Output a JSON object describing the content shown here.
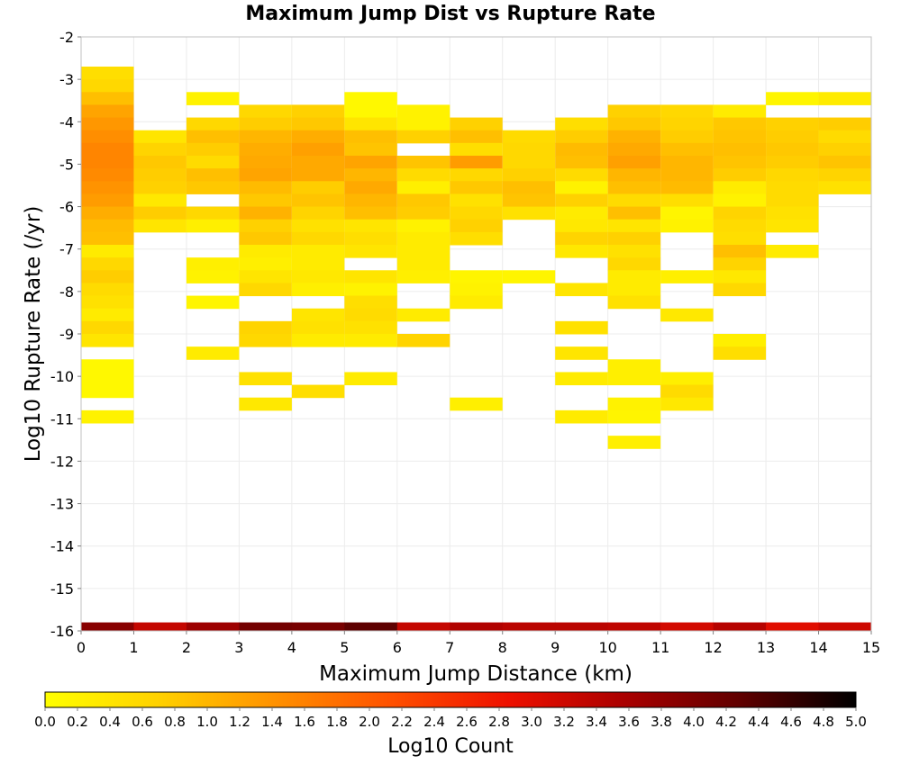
{
  "chart_data": {
    "type": "heatmap",
    "title": "Maximum Jump Dist vs Rupture Rate",
    "xlabel": "Maximum Jump Distance (km)",
    "ylabel": "Log10 Rupture Rate (/yr)",
    "xlim": [
      0,
      15
    ],
    "ylim": [
      -16,
      -2
    ],
    "x_ticks": [
      "0",
      "1",
      "2",
      "3",
      "4",
      "5",
      "6",
      "7",
      "8",
      "9",
      "10",
      "11",
      "12",
      "13",
      "14",
      "15"
    ],
    "y_ticks": [
      "-2",
      "-3",
      "-4",
      "-5",
      "-6",
      "-7",
      "-8",
      "-9",
      "-10",
      "-11",
      "-12",
      "-13",
      "-14",
      "-15",
      "-16"
    ],
    "x_bin_width": 1,
    "y_bin_height": 0.3,
    "grid": true,
    "colorbar": {
      "label": "Log10 Count",
      "range": [
        0,
        5
      ],
      "ticks": [
        "0.0",
        "0.2",
        "0.4",
        "0.6",
        "0.8",
        "1.0",
        "1.2",
        "1.4",
        "1.6",
        "1.8",
        "2.0",
        "2.2",
        "2.4",
        "2.6",
        "2.8",
        "3.0",
        "3.2",
        "3.4",
        "3.6",
        "3.8",
        "4.0",
        "4.2",
        "4.4",
        "4.6",
        "4.8",
        "5.0"
      ],
      "colors": [
        "#ffff00",
        "#ffd000",
        "#ff9000",
        "#ff5000",
        "#ee1000",
        "#aa0000",
        "#600000",
        "#000000"
      ]
    },
    "columns": [
      {
        "x": 0.5,
        "ranges": [
          [
            -2.85,
            0.5
          ],
          [
            -3.15,
            0.6
          ],
          [
            -3.45,
            0.9
          ],
          [
            -3.75,
            1.2
          ],
          [
            -4.05,
            1.35
          ],
          [
            -4.35,
            1.45
          ],
          [
            -4.65,
            1.55
          ],
          [
            -4.95,
            1.55
          ],
          [
            -5.25,
            1.5
          ],
          [
            -5.55,
            1.4
          ],
          [
            -5.85,
            1.3
          ],
          [
            -6.15,
            1.1
          ],
          [
            -6.45,
            0.95
          ],
          [
            -6.75,
            0.9
          ],
          [
            -7.05,
            0.3
          ],
          [
            -7.35,
            0.6
          ],
          [
            -7.65,
            0.75
          ],
          [
            -7.95,
            0.55
          ],
          [
            -8.25,
            0.45
          ],
          [
            -8.55,
            0.3
          ],
          [
            -8.85,
            0.6
          ],
          [
            -9.15,
            0.4
          ],
          [
            -9.75,
            0.1
          ],
          [
            -10.05,
            0.1
          ],
          [
            -10.35,
            0.1
          ],
          [
            -10.95,
            0.2
          ]
        ]
      },
      {
        "x": 1.5,
        "ranges": [
          [
            -4.35,
            0.4
          ],
          [
            -4.65,
            0.65
          ],
          [
            -4.95,
            0.8
          ],
          [
            -5.25,
            0.75
          ],
          [
            -5.55,
            0.7
          ],
          [
            -5.85,
            0.35
          ],
          [
            -6.15,
            0.75
          ],
          [
            -6.45,
            0.4
          ]
        ]
      },
      {
        "x": 2.5,
        "ranges": [
          [
            -3.45,
            0.2
          ],
          [
            -4.05,
            0.6
          ],
          [
            -4.35,
            0.9
          ],
          [
            -4.65,
            0.75
          ],
          [
            -4.95,
            0.55
          ],
          [
            -5.25,
            0.9
          ],
          [
            -5.55,
            0.8
          ],
          [
            -6.15,
            0.6
          ],
          [
            -6.45,
            0.25
          ],
          [
            -7.35,
            0.25
          ],
          [
            -7.65,
            0.2
          ],
          [
            -8.25,
            0.15
          ],
          [
            -9.45,
            0.3
          ]
        ]
      },
      {
        "x": 3.5,
        "ranges": [
          [
            -3.75,
            0.6
          ],
          [
            -4.05,
            0.75
          ],
          [
            -4.35,
            1.0
          ],
          [
            -4.65,
            1.1
          ],
          [
            -4.95,
            1.15
          ],
          [
            -5.25,
            1.2
          ],
          [
            -5.55,
            0.95
          ],
          [
            -5.85,
            0.8
          ],
          [
            -6.15,
            1.05
          ],
          [
            -6.45,
            0.7
          ],
          [
            -6.75,
            0.8
          ],
          [
            -7.05,
            0.3
          ],
          [
            -7.35,
            0.25
          ],
          [
            -7.65,
            0.4
          ],
          [
            -7.95,
            0.6
          ],
          [
            -8.85,
            0.65
          ],
          [
            -9.15,
            0.6
          ],
          [
            -10.05,
            0.45
          ],
          [
            -10.65,
            0.35
          ]
        ]
      },
      {
        "x": 4.5,
        "ranges": [
          [
            -3.75,
            0.7
          ],
          [
            -4.05,
            0.8
          ],
          [
            -4.35,
            1.1
          ],
          [
            -4.65,
            1.25
          ],
          [
            -4.95,
            1.15
          ],
          [
            -5.25,
            1.15
          ],
          [
            -5.55,
            0.75
          ],
          [
            -5.85,
            0.85
          ],
          [
            -6.15,
            0.65
          ],
          [
            -6.45,
            0.45
          ],
          [
            -6.75,
            0.6
          ],
          [
            -7.05,
            0.3
          ],
          [
            -7.35,
            0.3
          ],
          [
            -7.65,
            0.35
          ],
          [
            -7.95,
            0.25
          ],
          [
            -8.55,
            0.4
          ],
          [
            -8.85,
            0.45
          ],
          [
            -9.15,
            0.3
          ],
          [
            -10.35,
            0.5
          ]
        ]
      },
      {
        "x": 5.5,
        "ranges": [
          [
            -3.45,
            0.1
          ],
          [
            -3.75,
            0.1
          ],
          [
            -4.05,
            0.4
          ],
          [
            -4.35,
            0.9
          ],
          [
            -4.65,
            0.85
          ],
          [
            -4.95,
            1.2
          ],
          [
            -5.25,
            1.0
          ],
          [
            -5.55,
            1.15
          ],
          [
            -5.85,
            1.0
          ],
          [
            -6.15,
            0.9
          ],
          [
            -6.45,
            0.4
          ],
          [
            -6.75,
            0.5
          ],
          [
            -7.05,
            0.4
          ],
          [
            -7.65,
            0.4
          ],
          [
            -7.95,
            0.2
          ],
          [
            -8.25,
            0.5
          ],
          [
            -8.55,
            0.55
          ],
          [
            -8.85,
            0.45
          ],
          [
            -9.15,
            0.3
          ],
          [
            -10.05,
            0.3
          ]
        ]
      },
      {
        "x": 6.5,
        "ranges": [
          [
            -3.75,
            0.2
          ],
          [
            -4.05,
            0.2
          ],
          [
            -4.35,
            0.7
          ],
          [
            -4.95,
            0.85
          ],
          [
            -5.25,
            0.55
          ],
          [
            -5.55,
            0.25
          ],
          [
            -5.85,
            0.8
          ],
          [
            -6.15,
            0.75
          ],
          [
            -6.45,
            0.2
          ],
          [
            -6.75,
            0.3
          ],
          [
            -7.05,
            0.3
          ],
          [
            -7.35,
            0.3
          ],
          [
            -7.65,
            0.25
          ],
          [
            -8.55,
            0.3
          ],
          [
            -9.15,
            0.65
          ]
        ]
      },
      {
        "x": 7.5,
        "ranges": [
          [
            -4.05,
            0.7
          ],
          [
            -4.35,
            0.9
          ],
          [
            -4.65,
            0.5
          ],
          [
            -4.95,
            1.3
          ],
          [
            -5.25,
            0.6
          ],
          [
            -5.55,
            0.8
          ],
          [
            -5.85,
            0.45
          ],
          [
            -6.15,
            0.6
          ],
          [
            -6.45,
            0.7
          ],
          [
            -6.75,
            0.5
          ],
          [
            -7.65,
            0.15
          ],
          [
            -7.95,
            0.2
          ],
          [
            -8.25,
            0.3
          ],
          [
            -10.65,
            0.25
          ]
        ]
      },
      {
        "x": 8.5,
        "ranges": [
          [
            -4.35,
            0.55
          ],
          [
            -4.65,
            0.6
          ],
          [
            -4.95,
            0.6
          ],
          [
            -5.25,
            0.7
          ],
          [
            -5.55,
            0.9
          ],
          [
            -5.85,
            0.85
          ],
          [
            -6.15,
            0.45
          ],
          [
            -7.65,
            0.15
          ]
        ]
      },
      {
        "x": 9.5,
        "ranges": [
          [
            -4.05,
            0.5
          ],
          [
            -4.35,
            0.75
          ],
          [
            -4.65,
            0.95
          ],
          [
            -4.95,
            0.9
          ],
          [
            -5.25,
            0.55
          ],
          [
            -5.55,
            0.2
          ],
          [
            -5.85,
            0.7
          ],
          [
            -6.15,
            0.3
          ],
          [
            -6.45,
            0.35
          ],
          [
            -6.75,
            0.65
          ],
          [
            -7.05,
            0.35
          ],
          [
            -7.95,
            0.4
          ],
          [
            -8.85,
            0.45
          ],
          [
            -9.45,
            0.4
          ],
          [
            -10.05,
            0.3
          ],
          [
            -10.95,
            0.3
          ]
        ]
      },
      {
        "x": 10.5,
        "ranges": [
          [
            -3.75,
            0.7
          ],
          [
            -4.05,
            0.8
          ],
          [
            -4.35,
            1.05
          ],
          [
            -4.65,
            1.15
          ],
          [
            -4.95,
            1.25
          ],
          [
            -5.25,
            1.0
          ],
          [
            -5.55,
            0.9
          ],
          [
            -5.85,
            0.55
          ],
          [
            -6.15,
            0.9
          ],
          [
            -6.45,
            0.4
          ],
          [
            -6.75,
            0.7
          ],
          [
            -7.05,
            0.45
          ],
          [
            -7.35,
            0.6
          ],
          [
            -7.65,
            0.3
          ],
          [
            -7.95,
            0.3
          ],
          [
            -8.25,
            0.45
          ],
          [
            -9.75,
            0.25
          ],
          [
            -10.05,
            0.25
          ],
          [
            -10.65,
            0.2
          ],
          [
            -10.95,
            0.15
          ],
          [
            -11.55,
            0.25
          ]
        ]
      },
      {
        "x": 11.5,
        "ranges": [
          [
            -3.75,
            0.6
          ],
          [
            -4.05,
            0.65
          ],
          [
            -4.35,
            0.75
          ],
          [
            -4.65,
            0.9
          ],
          [
            -4.95,
            1.0
          ],
          [
            -5.25,
            1.0
          ],
          [
            -5.55,
            0.95
          ],
          [
            -5.85,
            0.5
          ],
          [
            -6.15,
            0.15
          ],
          [
            -6.45,
            0.2
          ],
          [
            -7.65,
            0.25
          ],
          [
            -8.55,
            0.35
          ],
          [
            -10.05,
            0.25
          ],
          [
            -10.35,
            0.55
          ],
          [
            -10.65,
            0.35
          ]
        ]
      },
      {
        "x": 12.5,
        "ranges": [
          [
            -3.75,
            0.3
          ],
          [
            -4.05,
            0.8
          ],
          [
            -4.35,
            0.85
          ],
          [
            -4.65,
            0.9
          ],
          [
            -4.95,
            0.85
          ],
          [
            -5.25,
            0.75
          ],
          [
            -5.55,
            0.3
          ],
          [
            -5.85,
            0.2
          ],
          [
            -6.15,
            0.65
          ],
          [
            -6.45,
            0.55
          ],
          [
            -6.75,
            0.5
          ],
          [
            -7.05,
            0.9
          ],
          [
            -7.35,
            0.65
          ],
          [
            -7.65,
            0.35
          ],
          [
            -7.95,
            0.6
          ],
          [
            -9.15,
            0.25
          ],
          [
            -9.45,
            0.5
          ]
        ]
      },
      {
        "x": 13.5,
        "ranges": [
          [
            -3.45,
            0.15
          ],
          [
            -4.05,
            0.7
          ],
          [
            -4.35,
            0.75
          ],
          [
            -4.65,
            0.8
          ],
          [
            -4.95,
            0.75
          ],
          [
            -5.25,
            0.6
          ],
          [
            -5.55,
            0.55
          ],
          [
            -5.85,
            0.55
          ],
          [
            -6.15,
            0.45
          ],
          [
            -6.45,
            0.4
          ],
          [
            -7.05,
            0.3
          ]
        ]
      },
      {
        "x": 14.5,
        "ranges": [
          [
            -3.45,
            0.3
          ],
          [
            -4.05,
            0.75
          ],
          [
            -4.35,
            0.55
          ],
          [
            -4.65,
            0.7
          ],
          [
            -4.95,
            0.85
          ],
          [
            -5.25,
            0.65
          ],
          [
            -5.55,
            0.45
          ]
        ]
      }
    ],
    "bottom_strip": {
      "y": -16,
      "height": 0.2,
      "values": [
        3.9,
        3.3,
        3.7,
        4.1,
        4.05,
        4.3,
        3.3,
        3.5,
        3.4,
        3.4,
        3.35,
        3.15,
        3.45,
        3.0,
        3.2
      ]
    }
  }
}
